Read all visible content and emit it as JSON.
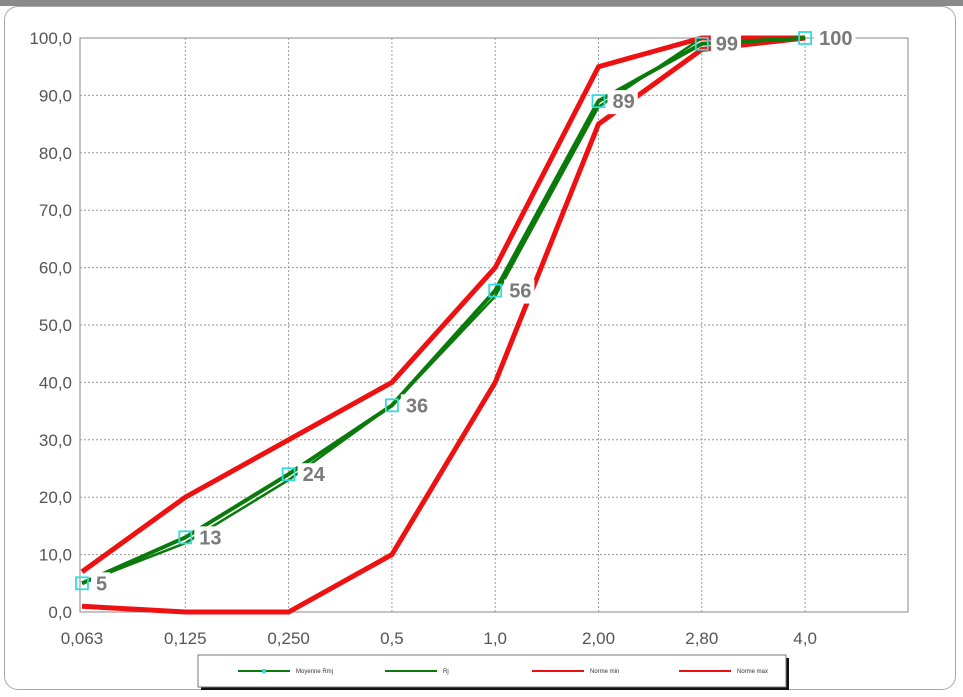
{
  "chart_data": {
    "type": "line",
    "categories": [
      "0,063",
      "0,125",
      "0,250",
      "0,5",
      "1,0",
      "2,00",
      "2,80",
      "4,0"
    ],
    "y_ticks": [
      "0,0",
      "10,0",
      "20,0",
      "30,0",
      "40,0",
      "50,0",
      "60,0",
      "70,0",
      "80,0",
      "90,0",
      "100,0"
    ],
    "ylim": [
      0,
      100
    ],
    "grid": true,
    "legend_position": "bottom",
    "series": [
      {
        "name": "Moyenne Rmj",
        "color": "#0a7a0a",
        "marker": "square-cyan",
        "values": [
          5,
          13,
          24,
          36,
          56,
          89,
          99,
          100
        ],
        "data_labels": [
          "5",
          "13",
          "24",
          "36",
          "56",
          "89",
          "99",
          "100"
        ]
      },
      {
        "name": "Rj",
        "color": "#0a7a0a",
        "values": [
          5,
          12,
          23,
          36,
          55,
          88,
          100,
          null
        ]
      },
      {
        "name": "Norme min",
        "color": "#ee1111",
        "values": [
          1,
          0,
          0,
          10,
          40,
          85,
          98,
          100
        ]
      },
      {
        "name": "Norme max",
        "color": "#ee1111",
        "values": [
          7,
          20,
          30,
          40,
          60,
          95,
          100,
          100
        ]
      }
    ]
  }
}
